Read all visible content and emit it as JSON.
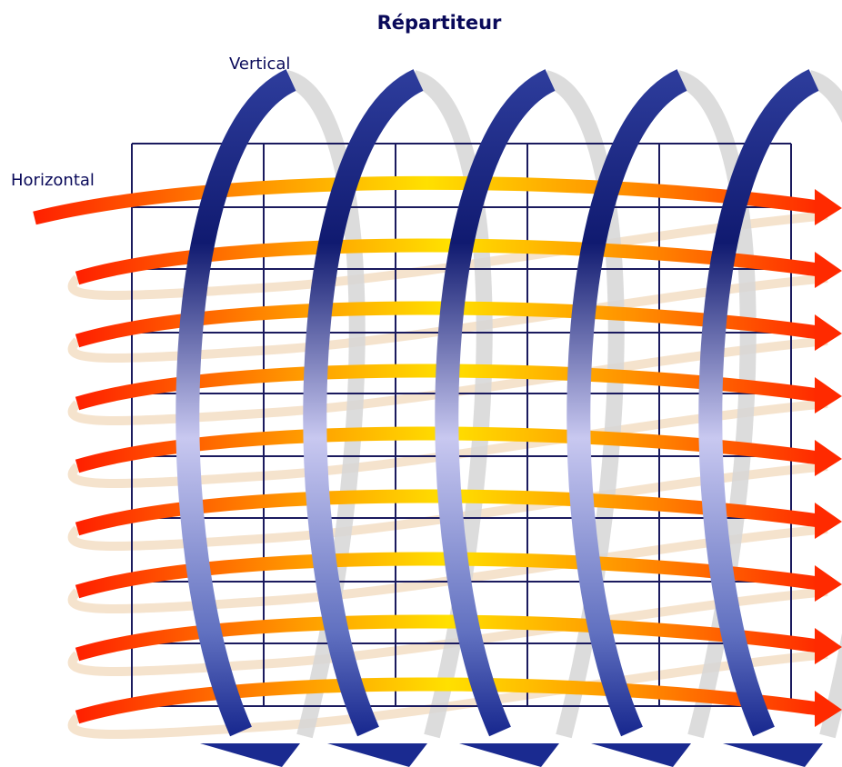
{
  "header": {
    "title": "Répartiteur"
  },
  "labels": {
    "vertical": "Vertical",
    "horizontal": "Horizontal"
  }
}
